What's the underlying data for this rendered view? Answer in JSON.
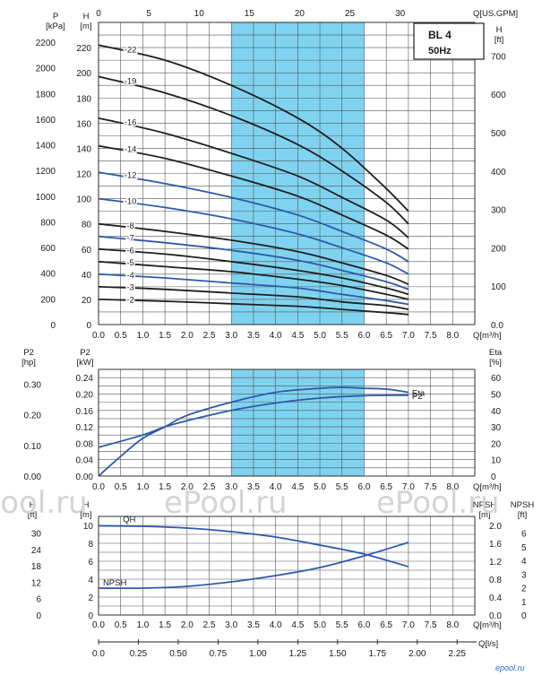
{
  "model_box": {
    "model": "BL 4",
    "freq": "50Hz"
  },
  "watermark": {
    "text": "ePool.ru",
    "logo": "epool.ru"
  },
  "chart_data": [
    {
      "type": "line",
      "title": "QH curves",
      "x": {
        "label": "Q[m³/h]",
        "range": [
          0,
          8.5
        ],
        "ticks": [
          "0.0",
          "0.5",
          "1.0",
          "1.5",
          "2.0",
          "2.5",
          "3.0",
          "3.5",
          "4.0",
          "4.5",
          "5.0",
          "5.5",
          "6.0",
          "6.5",
          "7.0",
          "7.5",
          "8.0"
        ]
      },
      "x_top": {
        "label": "Q[US.GPM]",
        "ticks": [
          "0",
          "5",
          "10",
          "15",
          "20",
          "25",
          "30"
        ]
      },
      "y_left_P": {
        "label_top": "P",
        "unit": "[kPa]",
        "ticks": [
          "0",
          "200",
          "400",
          "600",
          "800",
          "1000",
          "1200",
          "1400",
          "1600",
          "1800",
          "2000",
          "2200"
        ]
      },
      "y_left_H": {
        "label_top": "H",
        "unit": "[m]",
        "ticks": [
          "0",
          "20",
          "40",
          "60",
          "80",
          "100",
          "120",
          "140",
          "160",
          "180",
          "200",
          "220"
        ],
        "range": [
          0,
          240
        ]
      },
      "y_right_H": {
        "label_top": "H",
        "unit": "[ft]",
        "ticks": [
          "0.0",
          "100",
          "200",
          "300",
          "400",
          "500",
          "600",
          "700"
        ],
        "range_ft": [
          0,
          787
        ]
      },
      "highlight_range": [
        3.0,
        6.0
      ],
      "series": [
        {
          "name": "-22",
          "color": "#1f1f1f",
          "x": [
            0.0,
            1.5,
            3.0,
            4.5,
            5.5,
            6.5,
            7.0
          ],
          "y": [
            222,
            210,
            190,
            164,
            140,
            108,
            90
          ]
        },
        {
          "name": "-19",
          "color": "#1f1f1f",
          "x": [
            0.0,
            1.5,
            3.0,
            4.5,
            5.5,
            6.5,
            7.0
          ],
          "y": [
            197,
            184,
            166,
            143,
            122,
            97,
            80
          ]
        },
        {
          "name": "-16",
          "color": "#1f1f1f",
          "x": [
            0.0,
            1.5,
            3.0,
            4.5,
            5.5,
            6.5,
            7.0
          ],
          "y": [
            164,
            152,
            136,
            118,
            101,
            83,
            69
          ]
        },
        {
          "name": "-14",
          "color": "#1f1f1f",
          "x": [
            0.0,
            1.5,
            3.0,
            4.5,
            5.5,
            6.5,
            7.0
          ],
          "y": [
            142,
            132,
            118,
            102,
            87,
            71,
            60
          ]
        },
        {
          "name": "-12",
          "color": "#2e5aa8",
          "x": [
            0.0,
            1.5,
            3.0,
            4.5,
            5.5,
            6.5,
            7.0
          ],
          "y": [
            121,
            112,
            101,
            87,
            74,
            60,
            50
          ]
        },
        {
          "name": "-10",
          "color": "#2e5aa8",
          "x": [
            0.0,
            1.5,
            3.0,
            4.5,
            5.5,
            6.5,
            7.0
          ],
          "y": [
            100,
            93,
            84,
            72,
            61,
            49,
            40
          ]
        },
        {
          "name": "-8",
          "color": "#1f1f1f",
          "x": [
            0.0,
            1.5,
            3.0,
            4.5,
            5.5,
            6.5,
            7.0
          ],
          "y": [
            80,
            74,
            67,
            58,
            49,
            39,
            32
          ]
        },
        {
          "name": "-7",
          "color": "#2e5aa8",
          "x": [
            0.0,
            1.5,
            3.0,
            4.5,
            5.5,
            6.5,
            7.0
          ],
          "y": [
            70,
            65,
            59,
            51,
            43,
            34,
            28
          ]
        },
        {
          "name": "-6",
          "color": "#1f1f1f",
          "x": [
            0.0,
            1.5,
            3.0,
            4.5,
            5.5,
            6.5,
            7.0
          ],
          "y": [
            60,
            56,
            50,
            43,
            37,
            29,
            24
          ]
        },
        {
          "name": "-5",
          "color": "#1f1f1f",
          "x": [
            0.0,
            1.5,
            3.0,
            4.5,
            5.5,
            6.5,
            7.0
          ],
          "y": [
            50,
            46,
            42,
            36,
            31,
            24,
            20
          ]
        },
        {
          "name": "-4",
          "color": "#2e5aa8",
          "x": [
            0.0,
            1.5,
            3.0,
            4.5,
            5.5,
            6.5,
            7.0
          ],
          "y": [
            40,
            37,
            33,
            29,
            24,
            19,
            16
          ]
        },
        {
          "name": "-3",
          "color": "#1f1f1f",
          "x": [
            0.0,
            1.5,
            3.0,
            4.5,
            5.5,
            6.5,
            7.0
          ],
          "y": [
            30,
            28,
            25,
            22,
            18,
            15,
            12
          ]
        },
        {
          "name": "-2",
          "color": "#1f1f1f",
          "x": [
            0.0,
            1.5,
            3.0,
            4.5,
            5.5,
            6.5,
            7.0
          ],
          "y": [
            20,
            18.5,
            16.5,
            14.5,
            12,
            9.5,
            8
          ]
        }
      ]
    },
    {
      "type": "line",
      "x": {
        "label": "Q[m³/h]",
        "range": [
          0,
          8.5
        ],
        "ticks": [
          "0.0",
          "0.5",
          "1.0",
          "1.5",
          "2.0",
          "2.5",
          "3.0",
          "3.5",
          "4.0",
          "4.5",
          "5.0",
          "5.5",
          "6.0",
          "6.5",
          "7.0",
          "7.5",
          "8.0"
        ]
      },
      "y_left_hp": {
        "label_top": "P2",
        "unit": "[hp]",
        "ticks": [
          "0.00",
          "0.10",
          "0.20",
          "0.30"
        ]
      },
      "y_left_kw": {
        "label_top": "P2",
        "unit": "[kW]",
        "ticks": [
          "0.00",
          "0.04",
          "0.08",
          "0.12",
          "0.16",
          "0.20",
          "0.24"
        ],
        "range": [
          0,
          0.26
        ]
      },
      "y_right": {
        "label_top": "Eta",
        "unit": "[%]",
        "ticks": [
          "0",
          "10",
          "20",
          "30",
          "40",
          "50",
          "60"
        ],
        "range": [
          0,
          65
        ]
      },
      "highlight_range": [
        3.0,
        6.0
      ],
      "series": [
        {
          "name": "Eta",
          "axis": "right",
          "x": [
            0.0,
            0.5,
            1.0,
            1.5,
            2.0,
            3.0,
            4.0,
            5.0,
            5.5,
            6.0,
            6.5,
            7.0
          ],
          "y": [
            0,
            12,
            23,
            30,
            37,
            45,
            51,
            53.5,
            54,
            53.5,
            53,
            51
          ]
        },
        {
          "name": "P2",
          "axis": "left_kw",
          "x": [
            0.0,
            1.0,
            1.5,
            2.0,
            3.0,
            4.0,
            5.0,
            6.0,
            7.0
          ],
          "y": [
            0.07,
            0.1,
            0.12,
            0.135,
            0.16,
            0.178,
            0.19,
            0.196,
            0.197
          ]
        }
      ]
    },
    {
      "type": "line",
      "x": {
        "label": "Q[m³/h]",
        "range": [
          0,
          8.5
        ],
        "ticks": [
          "0.0",
          "0.5",
          "1.0",
          "1.5",
          "2.0",
          "2.5",
          "3.0",
          "3.5",
          "4.0",
          "4.5",
          "5.0",
          "5.5",
          "6.0",
          "6.5",
          "7.0",
          "7.5",
          "8.0"
        ]
      },
      "x_bottom2": {
        "label": "Q[l/s]",
        "ticks": [
          "0.0",
          "0.25",
          "0.50",
          "0.75",
          "1.00",
          "1.25",
          "1.50",
          "1.75",
          "2.00",
          "2.25"
        ]
      },
      "y_left_ft": {
        "label_top": "H",
        "unit": "[ft]",
        "ticks": [
          "0",
          "6",
          "12",
          "18",
          "24",
          "30"
        ]
      },
      "y_left_m": {
        "label_top": "H",
        "unit": "[m]",
        "ticks": [
          "0",
          "2",
          "4",
          "6",
          "8",
          "10"
        ],
        "range": [
          0,
          11
        ]
      },
      "y_right_m": {
        "label_top": "NPSH",
        "unit": "[m]",
        "ticks": [
          "0.0",
          "0.4",
          "0.8",
          "1.2",
          "1.6",
          "2.0"
        ]
      },
      "y_right_ft": {
        "label_top": "NPSH",
        "unit": "[ft]",
        "ticks": [
          "0",
          "1",
          "2",
          "3",
          "4",
          "5",
          "6"
        ]
      },
      "series": [
        {
          "name": "QH",
          "axis": "left_m",
          "x": [
            0.0,
            1.0,
            2.0,
            3.0,
            4.0,
            5.0,
            6.0,
            7.0
          ],
          "y": [
            9.95,
            9.9,
            9.7,
            9.3,
            8.7,
            7.8,
            6.8,
            5.4
          ]
        },
        {
          "name": "NPSH",
          "axis": "left_m",
          "x": [
            0.0,
            1.0,
            2.0,
            3.0,
            4.0,
            5.0,
            6.0,
            7.0
          ],
          "y": [
            3.0,
            3.0,
            3.2,
            3.7,
            4.4,
            5.3,
            6.6,
            8.1
          ]
        }
      ]
    }
  ]
}
